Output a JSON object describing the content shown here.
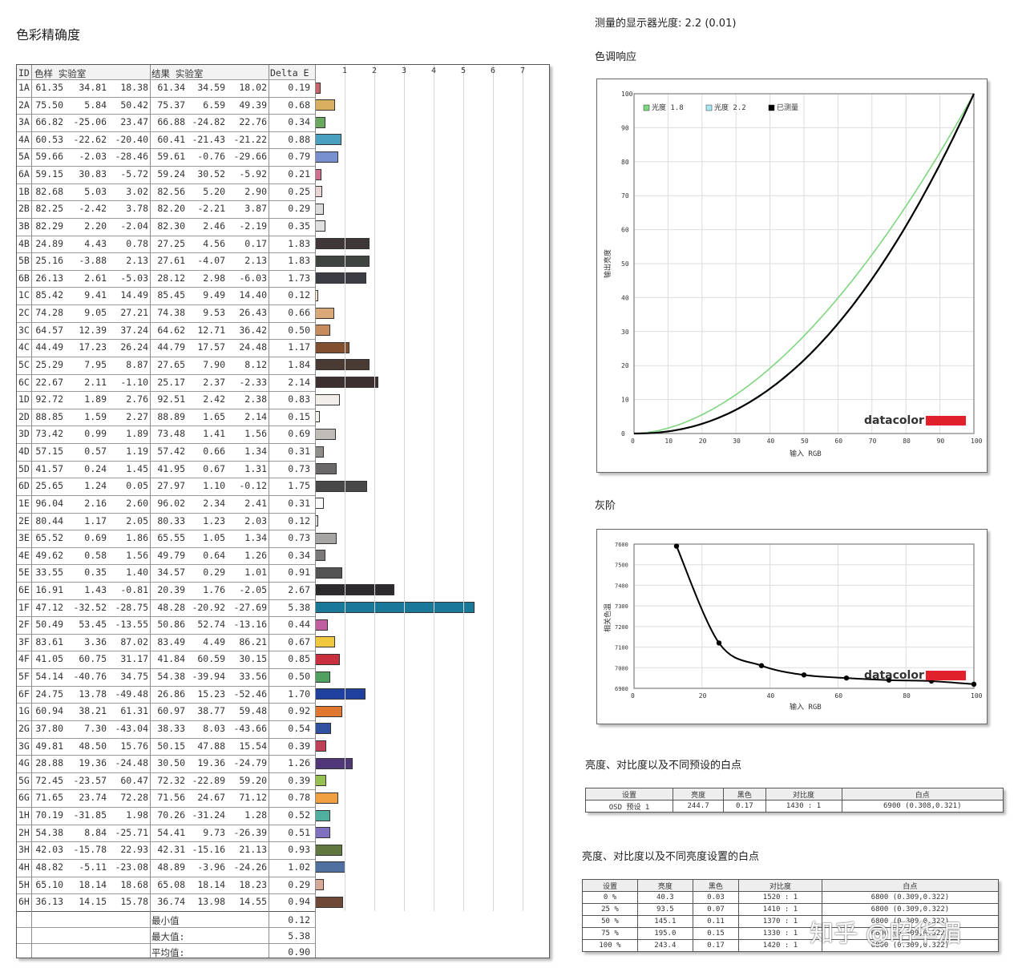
{
  "left_title": "色彩精确度",
  "gamma_line": "测量的显示器光度: 2.2 (0.01)",
  "tone_title": "色调响应",
  "gray_title": "灰阶",
  "wp1_title": "亮度、对比度以及不同预设的白点",
  "wp2_title": "亮度、对比度以及不同亮度设置的白点",
  "watermark": "知乎 @昭华湄",
  "accuracy_table": {
    "headers": {
      "id": "ID",
      "sample": "色样 实验室",
      "result": "结果 实验室",
      "delta": "Delta E"
    },
    "rows": [
      [
        "1A",
        "61.35",
        "34.81",
        "18.38",
        "61.34",
        "34.59",
        "18.02",
        "0.19"
      ],
      [
        "2A",
        "75.50",
        "5.84",
        "50.42",
        "75.37",
        "6.59",
        "49.39",
        "0.68"
      ],
      [
        "3A",
        "66.82",
        "-25.06",
        "23.47",
        "66.88",
        "-24.82",
        "22.76",
        "0.34"
      ],
      [
        "4A",
        "60.53",
        "-22.62",
        "-20.40",
        "60.41",
        "-21.43",
        "-21.22",
        "0.88"
      ],
      [
        "5A",
        "59.66",
        "-2.03",
        "-28.46",
        "59.61",
        "-0.76",
        "-29.66",
        "0.79"
      ],
      [
        "6A",
        "59.15",
        "30.83",
        "-5.72",
        "59.24",
        "30.52",
        "-5.92",
        "0.21"
      ],
      [
        "1B",
        "82.68",
        "5.03",
        "3.02",
        "82.56",
        "5.20",
        "2.90",
        "0.25"
      ],
      [
        "2B",
        "82.25",
        "-2.42",
        "3.78",
        "82.20",
        "-2.21",
        "3.87",
        "0.29"
      ],
      [
        "3B",
        "82.29",
        "2.20",
        "-2.04",
        "82.30",
        "2.46",
        "-2.19",
        "0.35"
      ],
      [
        "4B",
        "24.89",
        "4.43",
        "0.78",
        "27.25",
        "4.56",
        "0.17",
        "1.83"
      ],
      [
        "5B",
        "25.16",
        "-3.88",
        "2.13",
        "27.61",
        "-4.07",
        "2.13",
        "1.83"
      ],
      [
        "6B",
        "26.13",
        "2.61",
        "-5.03",
        "28.12",
        "2.98",
        "-6.03",
        "1.73"
      ],
      [
        "1C",
        "85.42",
        "9.41",
        "14.49",
        "85.45",
        "9.49",
        "14.40",
        "0.12"
      ],
      [
        "2C",
        "74.28",
        "9.05",
        "27.21",
        "74.38",
        "9.53",
        "26.43",
        "0.66"
      ],
      [
        "3C",
        "64.57",
        "12.39",
        "37.24",
        "64.62",
        "12.71",
        "36.42",
        "0.50"
      ],
      [
        "4C",
        "44.49",
        "17.23",
        "26.24",
        "44.79",
        "17.57",
        "24.48",
        "1.17"
      ],
      [
        "5C",
        "25.29",
        "7.95",
        "8.87",
        "27.65",
        "7.90",
        "8.12",
        "1.84"
      ],
      [
        "6C",
        "22.67",
        "2.11",
        "-1.10",
        "25.17",
        "2.37",
        "-2.33",
        "2.14"
      ],
      [
        "1D",
        "92.72",
        "1.89",
        "2.76",
        "92.51",
        "2.42",
        "2.38",
        "0.83"
      ],
      [
        "2D",
        "88.85",
        "1.59",
        "2.27",
        "88.89",
        "1.65",
        "2.14",
        "0.15"
      ],
      [
        "3D",
        "73.42",
        "0.99",
        "1.89",
        "73.48",
        "1.41",
        "1.56",
        "0.69"
      ],
      [
        "4D",
        "57.15",
        "0.57",
        "1.19",
        "57.42",
        "0.66",
        "1.34",
        "0.31"
      ],
      [
        "5D",
        "41.57",
        "0.24",
        "1.45",
        "41.95",
        "0.67",
        "1.31",
        "0.73"
      ],
      [
        "6D",
        "25.65",
        "1.24",
        "0.05",
        "27.97",
        "1.10",
        "-0.12",
        "1.75"
      ],
      [
        "1E",
        "96.04",
        "2.16",
        "2.60",
        "96.02",
        "2.34",
        "2.41",
        "0.31"
      ],
      [
        "2E",
        "80.44",
        "1.17",
        "2.05",
        "80.33",
        "1.23",
        "2.03",
        "0.12"
      ],
      [
        "3E",
        "65.52",
        "0.69",
        "1.86",
        "65.55",
        "1.05",
        "1.34",
        "0.73"
      ],
      [
        "4E",
        "49.62",
        "0.58",
        "1.56",
        "49.79",
        "0.64",
        "1.26",
        "0.34"
      ],
      [
        "5E",
        "33.55",
        "0.35",
        "1.40",
        "34.57",
        "0.29",
        "1.01",
        "0.91"
      ],
      [
        "6E",
        "16.91",
        "1.43",
        "-0.81",
        "20.39",
        "1.76",
        "-2.05",
        "2.67"
      ],
      [
        "1F",
        "47.12",
        "-32.52",
        "-28.75",
        "48.28",
        "-20.92",
        "-27.69",
        "5.38"
      ],
      [
        "2F",
        "50.49",
        "53.45",
        "-13.55",
        "50.86",
        "52.74",
        "-13.16",
        "0.44"
      ],
      [
        "3F",
        "83.61",
        "3.36",
        "87.02",
        "83.49",
        "4.49",
        "86.21",
        "0.67"
      ],
      [
        "4F",
        "41.05",
        "60.75",
        "31.17",
        "41.84",
        "60.59",
        "30.15",
        "0.85"
      ],
      [
        "5F",
        "54.14",
        "-40.76",
        "34.75",
        "54.38",
        "-39.94",
        "33.56",
        "0.50"
      ],
      [
        "6F",
        "24.75",
        "13.78",
        "-49.48",
        "26.86",
        "15.23",
        "-52.46",
        "1.70"
      ],
      [
        "1G",
        "60.94",
        "38.21",
        "61.31",
        "60.97",
        "38.77",
        "59.48",
        "0.92"
      ],
      [
        "2G",
        "37.80",
        "7.30",
        "-43.04",
        "38.33",
        "8.03",
        "-43.66",
        "0.54"
      ],
      [
        "3G",
        "49.81",
        "48.50",
        "15.76",
        "50.15",
        "47.88",
        "15.54",
        "0.39"
      ],
      [
        "4G",
        "28.88",
        "19.36",
        "-24.48",
        "30.50",
        "19.36",
        "-24.79",
        "1.26"
      ],
      [
        "5G",
        "72.45",
        "-23.57",
        "60.47",
        "72.32",
        "-22.89",
        "59.20",
        "0.39"
      ],
      [
        "6G",
        "71.65",
        "23.74",
        "72.28",
        "71.56",
        "24.67",
        "71.12",
        "0.78"
      ],
      [
        "1H",
        "70.19",
        "-31.85",
        "1.98",
        "70.26",
        "-31.24",
        "1.28",
        "0.52"
      ],
      [
        "2H",
        "54.38",
        "8.84",
        "-25.71",
        "54.41",
        "9.73",
        "-26.39",
        "0.51"
      ],
      [
        "3H",
        "42.03",
        "-15.78",
        "22.93",
        "42.31",
        "-15.16",
        "21.13",
        "0.93"
      ],
      [
        "4H",
        "48.82",
        "-5.11",
        "-23.08",
        "48.89",
        "-3.96",
        "-24.26",
        "1.02"
      ],
      [
        "5H",
        "65.10",
        "18.14",
        "18.68",
        "65.08",
        "18.14",
        "18.23",
        "0.29"
      ],
      [
        "6H",
        "36.13",
        "14.15",
        "15.78",
        "36.74",
        "13.98",
        "14.55",
        "0.94"
      ]
    ],
    "bar_colors": [
      "#c8646a",
      "#d8b060",
      "#6aa860",
      "#4aa0c0",
      "#7890d0",
      "#d07090",
      "#e8d4d4",
      "#dcdcdc",
      "#e0e0e0",
      "#403838",
      "#404440",
      "#3c3c44",
      "#f0e0d0",
      "#d8a878",
      "#c88c5c",
      "#805030",
      "#4a3a34",
      "#3c3030",
      "#f2eeea",
      "#f4f0ec",
      "#c0bcb8",
      "#908c8a",
      "#6a6868",
      "#484848",
      "#fafafa",
      "#e0dcdc",
      "#a8a4a4",
      "#7a7878",
      "#545454",
      "#2c2a2c",
      "#1a7898",
      "#c060a0",
      "#f0c840",
      "#c83040",
      "#50a060",
      "#2040a0",
      "#e07830",
      "#3050a0",
      "#c04058",
      "#503878",
      "#98c050",
      "#f0a040",
      "#50b0a0",
      "#8070c0",
      "#607840",
      "#5070a0",
      "#d8a898",
      "#704838"
    ],
    "summary": [
      {
        "label": "最小值",
        "value": "0.12"
      },
      {
        "label": "最大值:",
        "value": "5.38"
      },
      {
        "label": "平均值:",
        "value": "0.90"
      }
    ],
    "axis_ticks": [
      "1",
      "2",
      "3",
      "4",
      "5",
      "6",
      "7"
    ]
  },
  "chart_data": [
    {
      "type": "line",
      "xlabel": "输入 RGB",
      "ylabel": "输出亮度",
      "xlim": [
        0,
        100
      ],
      "ylim": [
        0,
        100
      ],
      "x_ticks": [
        "0",
        "10",
        "20",
        "30",
        "40",
        "50",
        "60",
        "70",
        "80",
        "90",
        "100"
      ],
      "y_ticks": [
        "0",
        "10",
        "20",
        "30",
        "40",
        "50",
        "60",
        "70",
        "80",
        "90",
        "100"
      ],
      "legend_position": "top-left",
      "grid": true,
      "series": [
        {
          "name": "光度 1.8",
          "color": "#7ed67e",
          "gamma": 1.8
        },
        {
          "name": "光度 2.2",
          "color": "#a8e8f0",
          "gamma": 2.2
        },
        {
          "name": "已测量",
          "color": "#000000",
          "gamma": 2.21
        }
      ],
      "brand": "datacolor"
    },
    {
      "type": "line",
      "xlabel": "输入 RGB",
      "ylabel": "相关色温",
      "xlim": [
        0,
        100
      ],
      "ylim": [
        6900,
        7600
      ],
      "x_ticks": [
        "0",
        "20",
        "40",
        "60",
        "80",
        "100"
      ],
      "y_ticks": [
        "6900",
        "7000",
        "7100",
        "7200",
        "7300",
        "7400",
        "7500",
        "7600"
      ],
      "grid": true,
      "series": [
        {
          "name": "灰阶",
          "color": "#000000",
          "x": [
            12.5,
            25,
            37.5,
            50,
            62.5,
            75,
            87.5,
            100
          ],
          "y": [
            7590,
            7120,
            7010,
            6965,
            6950,
            6940,
            6935,
            6920
          ]
        }
      ],
      "brand": "datacolor"
    }
  ],
  "wp_table1": {
    "headers": [
      "设置",
      "亮度",
      "黑色",
      "对比度",
      "白点"
    ],
    "rows": [
      [
        "OSD 预设 1",
        "244.7",
        "0.17",
        "1430 : 1",
        "6900 (0.308,0.321)"
      ]
    ]
  },
  "wp_table2": {
    "headers": [
      "设置",
      "亮度",
      "黑色",
      "对比度",
      "白点"
    ],
    "rows": [
      [
        "0 %",
        "40.3",
        "0.03",
        "1520 : 1",
        "6800 (0.309,0.322)"
      ],
      [
        "25 %",
        "93.5",
        "0.07",
        "1410 : 1",
        "6800 (0.309,0.322)"
      ],
      [
        "50 %",
        "145.1",
        "0.11",
        "1370 : 1",
        "6800 (0.309,0.322)"
      ],
      [
        "75 %",
        "195.0",
        "0.15",
        "1330 : 1",
        "6800 (0.309,0.322)"
      ],
      [
        "100 %",
        "243.4",
        "0.17",
        "1420 : 1",
        "6800 (0.309,0.322)"
      ]
    ]
  },
  "colors": {
    "datacolor_red": "#e0202a"
  }
}
